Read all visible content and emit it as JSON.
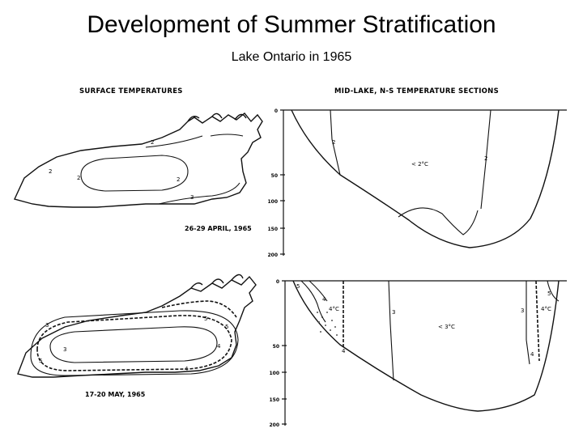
{
  "title": "Development of Summer Stratification",
  "subtitle": "Lake Ontario in 1965",
  "left_header": "SURFACE TEMPERATURES",
  "right_header": "MID-LAKE, N-S TEMPERATURE SECTIONS",
  "april": {
    "date": "26-29 APRIL, 1965",
    "isotherm_labels": [
      "2",
      "2",
      "3",
      "2",
      "2"
    ],
    "section_labels": [
      "2",
      "2"
    ],
    "section_note": "< 2°C",
    "depth_ticks": [
      "0",
      "50",
      "100",
      "150",
      "200"
    ]
  },
  "may": {
    "date": "17-20 MAY, 1965",
    "isotherm_labels": [
      "3",
      "4",
      "5",
      "5",
      "4",
      "5",
      "3"
    ],
    "section_labels": [
      "5",
      "4",
      "3",
      "3",
      "4",
      "5",
      "4"
    ],
    "section_note_left": "4°C",
    "section_note_mid": "< 3°C",
    "section_note_right": "4°C",
    "depth_ticks": [
      "0",
      "50",
      "100",
      "150",
      "200"
    ]
  }
}
